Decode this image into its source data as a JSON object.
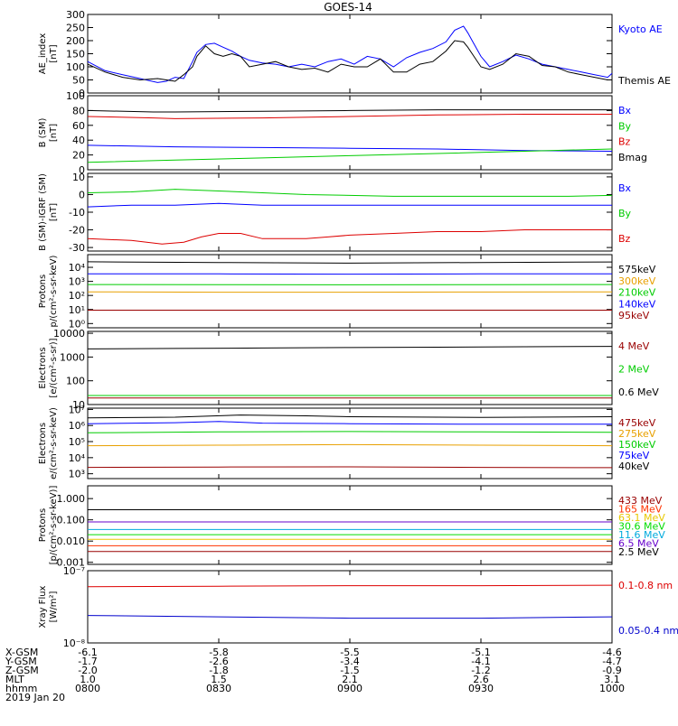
{
  "chart_data": {
    "type": "line",
    "title": "GOES-14",
    "date_label": "2019 Jan 20",
    "x_axis": {
      "hhmm_ticks": [
        "0800",
        "0830",
        "0900",
        "0930",
        "1000"
      ],
      "ephemeris_rows": [
        {
          "label": "X-GSM",
          "values": [
            "-6.1",
            "-5.8",
            "-5.5",
            "-5.1",
            "-4.6"
          ]
        },
        {
          "label": "Y-GSM",
          "values": [
            "-1.7",
            "-2.6",
            "-3.4",
            "-4.1",
            "-4.7"
          ]
        },
        {
          "label": "Z-GSM",
          "values": [
            "-2.0",
            "-1.8",
            "-1.5",
            "-1.2",
            "-0.9"
          ]
        },
        {
          "label": "MLT",
          "values": [
            "1.0",
            "1.5",
            "2.1",
            "2.6",
            "3.1"
          ]
        },
        {
          "label": "hhmm",
          "values": [
            "0800",
            "0830",
            "0900",
            "0930",
            "1000"
          ]
        }
      ]
    },
    "panels": [
      {
        "id": "ae",
        "ylabel": "AE_index\n[nT]",
        "scale": "linear",
        "ylim": [
          0,
          300
        ],
        "ticks": [
          "0",
          "50",
          "100",
          "150",
          "200",
          "250",
          "300"
        ],
        "series": [
          {
            "name": "Kyoto AE",
            "color": "#0000ff",
            "x": [
              0,
              4,
              8,
              12,
              16,
              18,
              20,
              22,
              24,
              25,
              27,
              29,
              31,
              33,
              35,
              37,
              40,
              43,
              46,
              49,
              52,
              55,
              58,
              61,
              64,
              67,
              70,
              73,
              76,
              79,
              82,
              84,
              86,
              87,
              88,
              90,
              92,
              95,
              98,
              101,
              104,
              107,
              110,
              113,
              116,
              119,
              120
            ],
            "y": [
              120,
              85,
              70,
              55,
              40,
              45,
              60,
              55,
              120,
              155,
              185,
              190,
              175,
              160,
              140,
              125,
              115,
              110,
              100,
              110,
              100,
              120,
              130,
              110,
              140,
              130,
              100,
              135,
              155,
              170,
              195,
              240,
              255,
              230,
              200,
              140,
              100,
              120,
              145,
              130,
              110,
              100,
              90,
              80,
              70,
              60,
              75
            ]
          },
          {
            "name": "Themis AE",
            "color": "#000000",
            "x": [
              0,
              4,
              8,
              12,
              16,
              18,
              20,
              22,
              24,
              25,
              27,
              29,
              31,
              33,
              35,
              37,
              40,
              43,
              46,
              49,
              52,
              55,
              58,
              61,
              64,
              67,
              70,
              73,
              76,
              79,
              82,
              84,
              86,
              87,
              88,
              90,
              92,
              95,
              98,
              101,
              104,
              107,
              110,
              113,
              116,
              119,
              120
            ],
            "y": [
              110,
              80,
              60,
              50,
              55,
              50,
              45,
              70,
              100,
              140,
              180,
              150,
              140,
              150,
              140,
              100,
              110,
              120,
              100,
              90,
              95,
              80,
              110,
              100,
              100,
              130,
              80,
              80,
              110,
              120,
              160,
              200,
              195,
              175,
              150,
              100,
              90,
              110,
              150,
              140,
              105,
              100,
              80,
              70,
              60,
              50,
              50
            ]
          }
        ]
      },
      {
        "id": "bsm",
        "ylabel": "B (SM)\n[nT]",
        "scale": "linear",
        "ylim": [
          0,
          100
        ],
        "ticks": [
          "0",
          "20",
          "40",
          "60",
          "80",
          "100"
        ],
        "series": [
          {
            "name": "Bx",
            "color": "#0000ff",
            "x": [
              0,
              20,
              40,
              60,
              80,
              100,
              120
            ],
            "y": [
              33,
              31,
              30,
              29,
              28,
              26,
              25
            ]
          },
          {
            "name": "By",
            "color": "#00cc00",
            "x": [
              0,
              20,
              40,
              60,
              80,
              100,
              120
            ],
            "y": [
              10,
              13,
              16,
              19,
              22,
              25,
              28
            ]
          },
          {
            "name": "Bz",
            "color": "#dd0000",
            "x": [
              0,
              15,
              20,
              40,
              60,
              80,
              100,
              120
            ],
            "y": [
              72,
              70,
              69,
              70,
              72,
              74,
              75,
              75
            ]
          },
          {
            "name": "Bmag",
            "color": "#000000",
            "x": [
              0,
              15,
              20,
              40,
              60,
              80,
              100,
              120
            ],
            "y": [
              80,
              78,
              78,
              79,
              80,
              81,
              81,
              81
            ]
          }
        ]
      },
      {
        "id": "bigrf",
        "ylabel": "B (SM)-IGRF (SM)\n[nT]",
        "scale": "linear",
        "ylim": [
          -32,
          12
        ],
        "ticks": [
          "-30",
          "-20",
          "-10",
          "0",
          "10"
        ],
        "series": [
          {
            "name": "Bx",
            "color": "#0000ff",
            "x": [
              0,
              10,
              20,
              30,
              40,
              50,
              60,
              70,
              80,
              90,
              100,
              110,
              120
            ],
            "y": [
              -7,
              -6,
              -6,
              -5,
              -6,
              -6,
              -6,
              -6,
              -6,
              -6,
              -6,
              -6,
              -6
            ]
          },
          {
            "name": "By",
            "color": "#00cc00",
            "x": [
              0,
              10,
              20,
              30,
              40,
              50,
              60,
              70,
              80,
              90,
              100,
              110,
              120
            ],
            "y": [
              1,
              1.5,
              3,
              2,
              1,
              0,
              -0.5,
              -1,
              -1,
              -1,
              -1,
              -1,
              -0.5
            ]
          },
          {
            "name": "Bz",
            "color": "#dd0000",
            "x": [
              0,
              10,
              17,
              22,
              26,
              30,
              35,
              40,
              45,
              50,
              55,
              60,
              70,
              80,
              90,
              100,
              110,
              120
            ],
            "y": [
              -25,
              -26,
              -28,
              -27,
              -24,
              -22,
              -22,
              -25,
              -25,
              -25,
              -24,
              -23,
              -22,
              -21,
              -21,
              -20,
              -20,
              -20
            ]
          }
        ]
      },
      {
        "id": "protons1",
        "ylabel": "Protons\np/(cm²-s-sr-keV)",
        "scale": "log",
        "ylim": [
          0.5,
          80000
        ],
        "ticks": [
          "10⁰",
          "10¹",
          "10²",
          "10³",
          "10⁴"
        ],
        "series": [
          {
            "name": "575keV",
            "color": "#000000",
            "x": [
              0,
              30,
              60,
              90,
              120
            ],
            "y": [
              25000,
              22000,
              20000,
              22000,
              24000
            ]
          },
          {
            "name": "300keV",
            "color": "#e8a000",
            "x": [
              0,
              30,
              60,
              90,
              120
            ],
            "y": [
              180,
              170,
              170,
              175,
              180
            ]
          },
          {
            "name": "210keV",
            "color": "#00cc00",
            "x": [
              0,
              30,
              60,
              90,
              120
            ],
            "y": [
              600,
              580,
              570,
              590,
              600
            ]
          },
          {
            "name": "140keV",
            "color": "#0000ff",
            "x": [
              0,
              30,
              60,
              90,
              120
            ],
            "y": [
              3500,
              3400,
              3300,
              3400,
              3500
            ]
          },
          {
            "name": "95keV",
            "color": "#990000",
            "x": [
              0,
              30,
              60,
              90,
              120
            ],
            "y": [
              9,
              9,
              9,
              9,
              9
            ]
          }
        ]
      },
      {
        "id": "electrons1",
        "ylabel": "Electrons\n[e/(cm²-s-sr)]",
        "scale": "log",
        "ylim": [
          10,
          12000
        ],
        "ticks": [
          "10",
          "100",
          "1000",
          "10000"
        ],
        "series": [
          {
            "name": "4 MeV",
            "color": "#990000",
            "x": [
              0,
              30,
              60,
              90,
              120
            ],
            "y": [
              19,
              19,
              19,
              19,
              19
            ]
          },
          {
            "name": "2 MeV",
            "color": "#00cc00",
            "x": [
              0,
              30,
              60,
              90,
              120
            ],
            "y": [
              24,
              24,
              24,
              24,
              24
            ]
          },
          {
            "name": "0.6 MeV",
            "color": "#000000",
            "x": [
              0,
              20,
              40,
              60,
              80,
              100,
              120
            ],
            "y": [
              2200,
              2300,
              2400,
              2500,
              2600,
              2700,
              2800
            ]
          }
        ]
      },
      {
        "id": "electrons2",
        "ylabel": "Electrons\ne/(cm²-s-sr-keV)",
        "scale": "log",
        "ylim": [
          500,
          12000000
        ],
        "ticks": [
          "10³",
          "10⁴",
          "10⁵",
          "10⁶",
          "10⁷"
        ],
        "series": [
          {
            "name": "475keV",
            "color": "#990000",
            "x": [
              0,
              30,
              60,
              90,
              120
            ],
            "y": [
              2500,
              2600,
              2700,
              2500,
              2400
            ]
          },
          {
            "name": "275keV",
            "color": "#e8a000",
            "x": [
              0,
              30,
              60,
              90,
              120
            ],
            "y": [
              55000,
              60000,
              65000,
              60000,
              55000
            ]
          },
          {
            "name": "150keV",
            "color": "#00cc00",
            "x": [
              0,
              30,
              60,
              90,
              120
            ],
            "y": [
              350000,
              400000,
              420000,
              400000,
              380000
            ]
          },
          {
            "name": "75keV",
            "color": "#0000ff",
            "x": [
              0,
              20,
              30,
              40,
              60,
              90,
              120
            ],
            "y": [
              1300000,
              1500000,
              1800000,
              1400000,
              1300000,
              1200000,
              1200000
            ]
          },
          {
            "name": "40keV",
            "color": "#000000",
            "x": [
              0,
              20,
              35,
              50,
              60,
              90,
              120
            ],
            "y": [
              3000000,
              3300000,
              4500000,
              4000000,
              3500000,
              3200000,
              3500000
            ]
          }
        ]
      },
      {
        "id": "protons2",
        "ylabel": "Protons\n[p/(cm²-s-sr-keV)]",
        "scale": "log",
        "ylim": [
          0.0008,
          4
        ],
        "ticks": [
          "0.001",
          "0.010",
          "0.100",
          "1.000"
        ],
        "series": [
          {
            "name": "433 MeV",
            "color": "#990000",
            "x": [
              0,
              30,
              60,
              90,
              120
            ],
            "y": [
              0.0032,
              0.0032,
              0.0032,
              0.0032,
              0.0032
            ]
          },
          {
            "name": "165 MeV",
            "color": "#ff3300",
            "x": [
              0,
              30,
              60,
              90,
              120
            ],
            "y": [
              0.006,
              0.006,
              0.006,
              0.006,
              0.006
            ]
          },
          {
            "name": "63.1 MeV",
            "color": "#e8c800",
            "x": [
              0,
              30,
              60,
              90,
              120
            ],
            "y": [
              0.012,
              0.012,
              0.012,
              0.012,
              0.012
            ]
          },
          {
            "name": "30.6 MeV",
            "color": "#00dd00",
            "x": [
              0,
              30,
              60,
              90,
              120
            ],
            "y": [
              0.02,
              0.02,
              0.02,
              0.02,
              0.02
            ]
          },
          {
            "name": "11.6 MeV",
            "color": "#00aadd",
            "x": [
              0,
              30,
              60,
              90,
              120
            ],
            "y": [
              0.035,
              0.035,
              0.035,
              0.035,
              0.035
            ]
          },
          {
            "name": "6.5 MeV",
            "color": "#6600cc",
            "x": [
              0,
              30,
              60,
              90,
              120
            ],
            "y": [
              0.08,
              0.08,
              0.08,
              0.08,
              0.08
            ]
          },
          {
            "name": "2.5 MeV",
            "color": "#000000",
            "x": [
              0,
              30,
              60,
              90,
              120
            ],
            "y": [
              0.3,
              0.3,
              0.3,
              0.3,
              0.3
            ]
          }
        ]
      },
      {
        "id": "xray",
        "ylabel": "Xray Flux\n[W/m²]",
        "scale": "log",
        "ylim": [
          1e-08,
          1e-07
        ],
        "ticks": [
          "10⁻⁸",
          "10⁻⁷"
        ],
        "series": [
          {
            "name": "0.1-0.8 nm",
            "color": "#dd0000",
            "x": [
              0,
              30,
              60,
              90,
              120
            ],
            "y": [
              6e-08,
              6.1e-08,
              6.2e-08,
              6.2e-08,
              6.3e-08
            ]
          },
          {
            "name": "0.05-0.4 nm",
            "color": "#0000cc",
            "x": [
              0,
              30,
              60,
              90,
              120
            ],
            "y": [
              2.4e-08,
              2.3e-08,
              2.2e-08,
              2.2e-08,
              2.3e-08
            ]
          }
        ]
      }
    ]
  }
}
